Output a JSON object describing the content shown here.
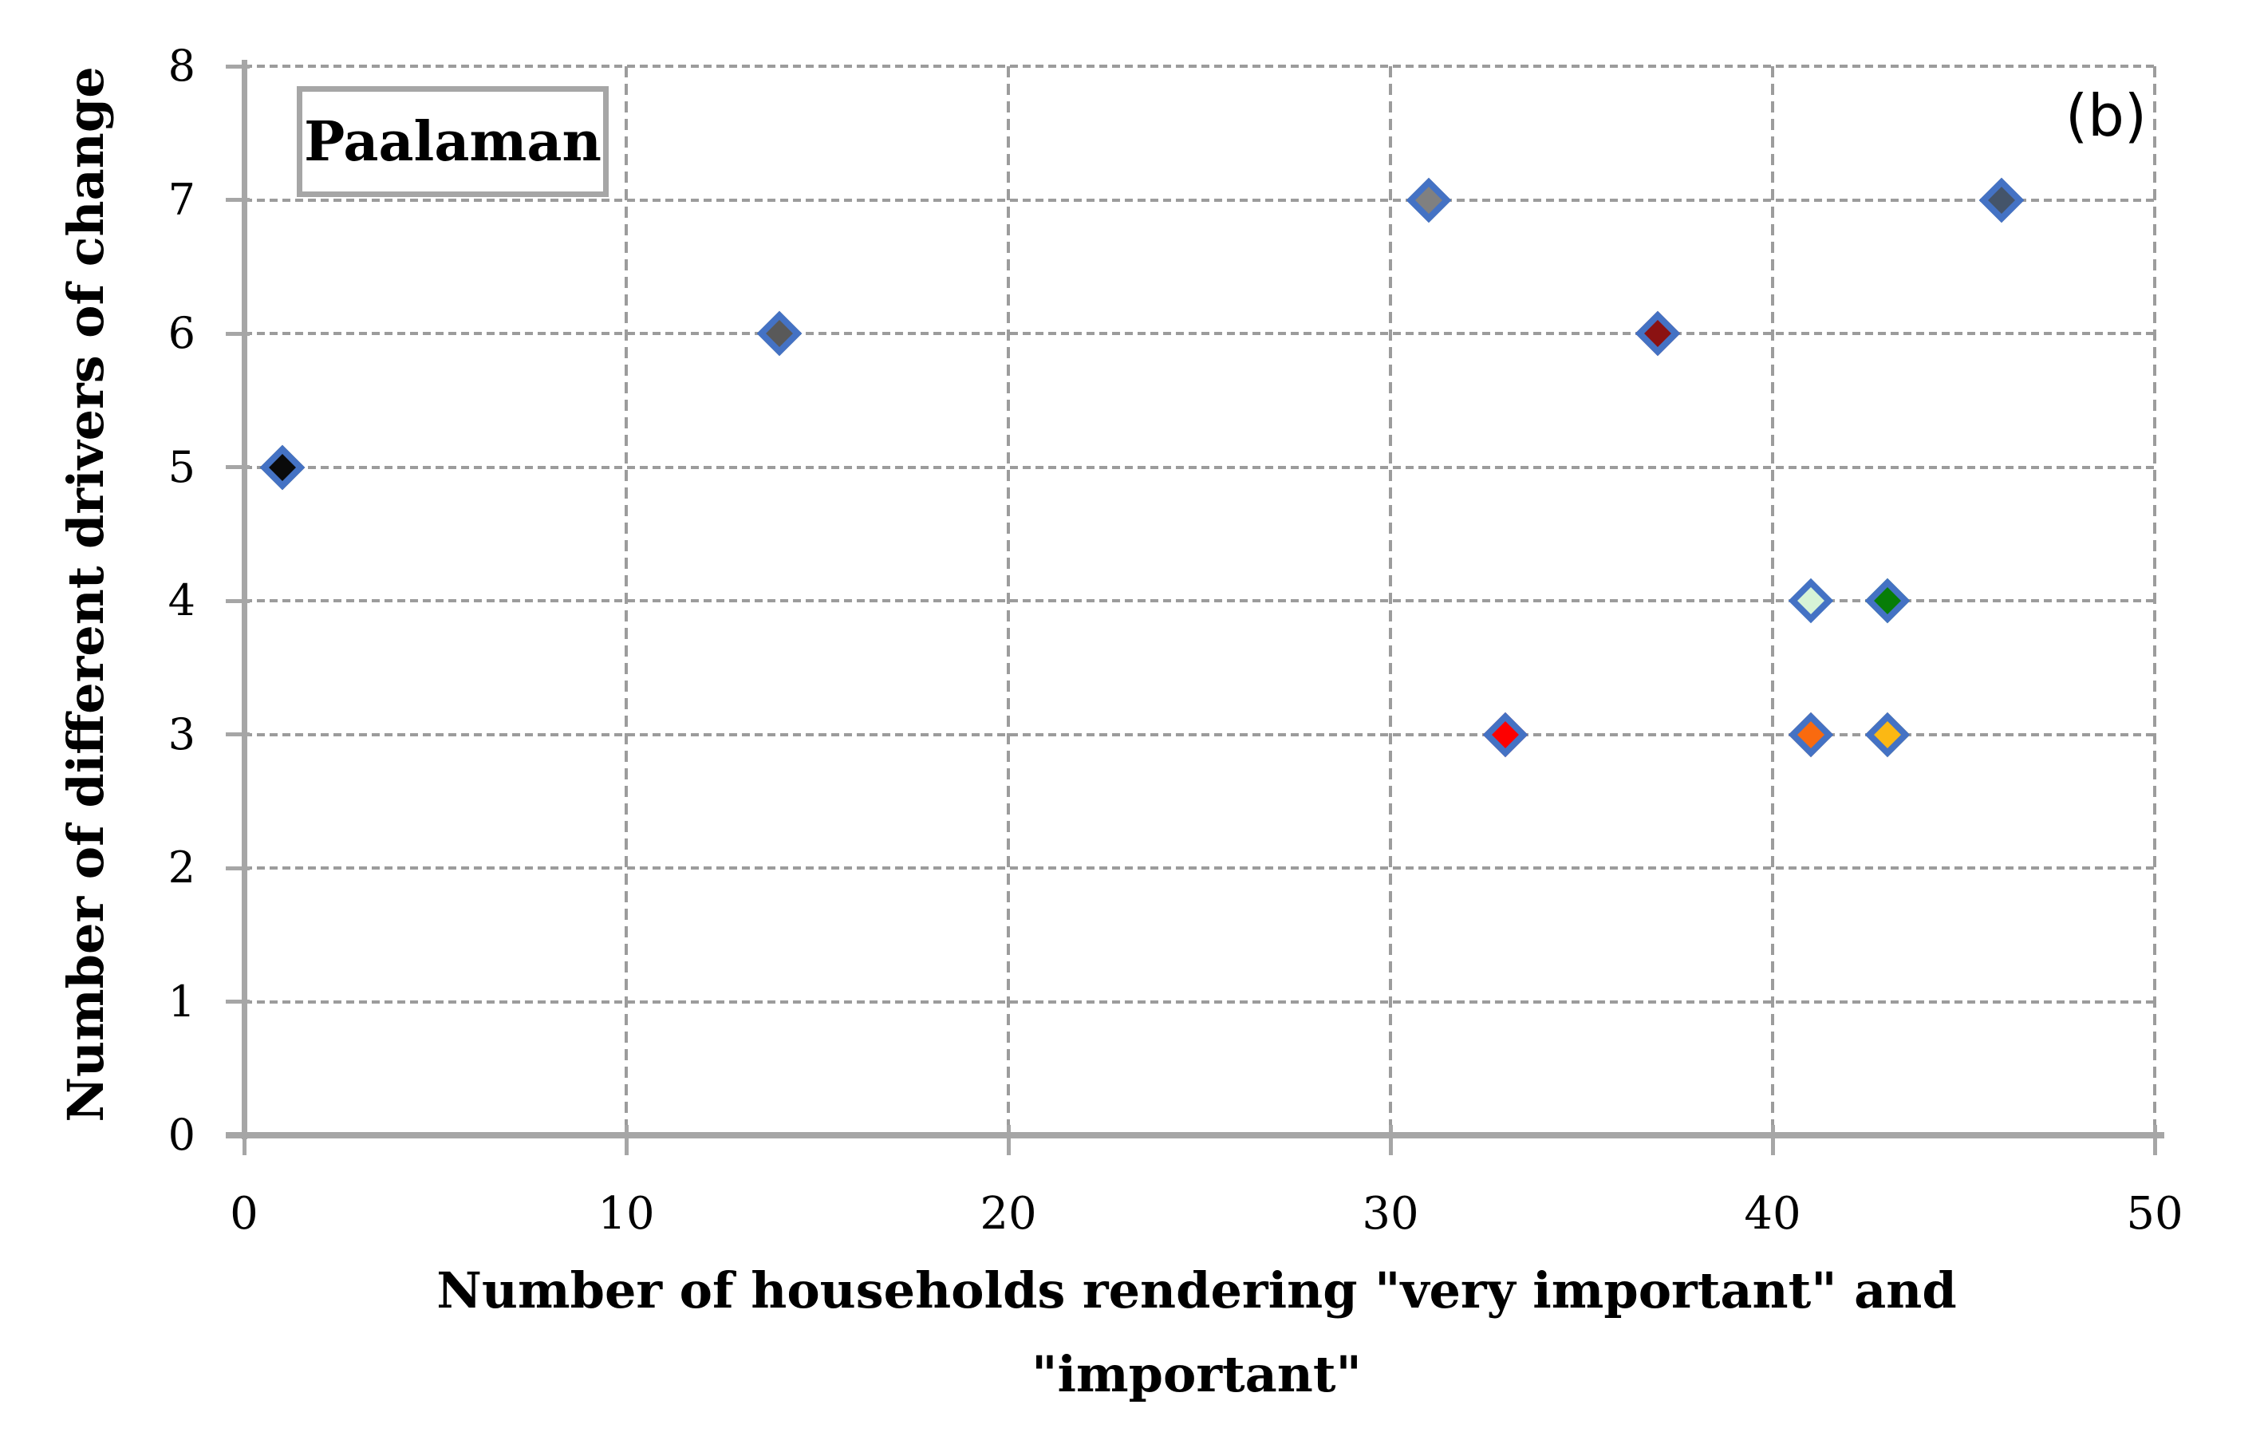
{
  "chart_data": {
    "type": "scatter",
    "title": "Paalaman",
    "panel_label": "(b)",
    "xlabel": "Number of households rendering \"very important\" and \"important\"",
    "xlabel_line1": "Number of households rendering \"very important\" and",
    "xlabel_line2": "\"important\"",
    "ylabel": "Number of different drivers of change",
    "xlim": [
      0,
      50
    ],
    "ylim": [
      0,
      8
    ],
    "x_ticks": [
      0,
      10,
      20,
      30,
      40,
      50
    ],
    "y_ticks": [
      0,
      1,
      2,
      3,
      4,
      5,
      6,
      7,
      8
    ],
    "grid": "dashed-gray-both-axes",
    "legend_position": "none",
    "marker": {
      "shape": "diamond",
      "border_color": "#4472c4"
    },
    "axis_color": "#a6a6a6",
    "points": [
      {
        "x": 1,
        "y": 5,
        "fill": "#0a0a0a",
        "name": "black"
      },
      {
        "x": 14,
        "y": 6,
        "fill": "#595959",
        "name": "dark-gray"
      },
      {
        "x": 31,
        "y": 7,
        "fill": "#808080",
        "name": "gray"
      },
      {
        "x": 37,
        "y": 6,
        "fill": "#8b1212",
        "name": "dark-red"
      },
      {
        "x": 46,
        "y": 7,
        "fill": "#44546a",
        "name": "slate-blue-gray"
      },
      {
        "x": 41,
        "y": 4,
        "fill": "#d6f3d6",
        "name": "pale-green"
      },
      {
        "x": 43,
        "y": 4,
        "fill": "#077d07",
        "name": "dark-green"
      },
      {
        "x": 33,
        "y": 3,
        "fill": "#fe0000",
        "name": "red"
      },
      {
        "x": 41,
        "y": 3,
        "fill": "#f96a0f",
        "name": "orange"
      },
      {
        "x": 43,
        "y": 3,
        "fill": "#fcb813",
        "name": "amber"
      }
    ]
  }
}
